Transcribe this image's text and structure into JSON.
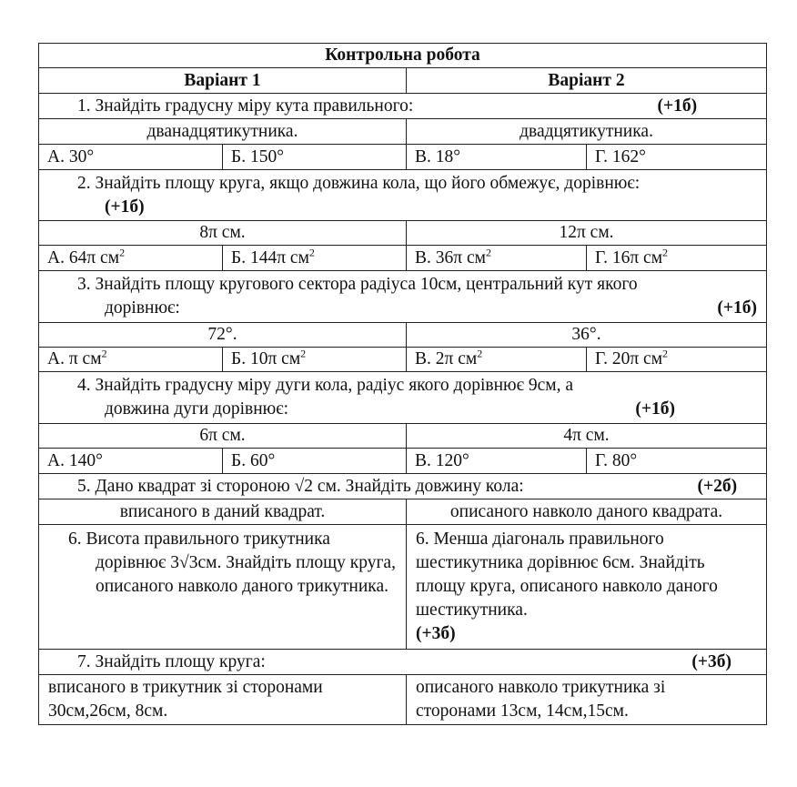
{
  "title": "Контрольна робота",
  "variants": [
    "Варіант 1",
    "Варіант 2"
  ],
  "q1": {
    "text": "1.  Знайдіть градусну міру кута правильного:",
    "points": "(+1б)",
    "v1": "дванадцятикутника.",
    "v2": "двадцятикутника.",
    "answers": [
      "А. 30°",
      "Б. 150°",
      "В. 18°",
      "Г. 162°"
    ]
  },
  "q2": {
    "text": "2.  Знайдіть площу круга, якщо довжина кола, що його обмежує, дорівнює:",
    "points": "(+1б)",
    "v1": "8π см.",
    "v2": "12π см.",
    "answers": [
      "А. 64π см",
      "Б. 144π см",
      "В. 36π см",
      "Г. 16π см"
    ],
    "sup": "2"
  },
  "q3": {
    "text": "3.  Знайдіть площу кругового сектора радіуса 10см, центральний кут якого",
    "text2": "дорівнює:",
    "points": "(+1б)",
    "v1": "72°.",
    "v2": "36°.",
    "answers": [
      "А. π см",
      "Б. 10π см",
      "В. 2π см",
      "Г. 20π см"
    ],
    "sup": "2"
  },
  "q4": {
    "text": "4.  Знайдіть градусну міру дуги кола, радіус якого дорівнює 9см, а",
    "text2": "довжина дуги дорівнює:",
    "points": "(+1б)",
    "v1": "6π см.",
    "v2": "4π см.",
    "answers": [
      "А. 140°",
      "Б. 60°",
      "В. 120°",
      "Г. 80°"
    ]
  },
  "q5": {
    "text": "5.  Дано квадрат зі стороною √2 см. Знайдіть довжину кола:",
    "points": "(+2б)",
    "v1": "вписаного в даний квадрат.",
    "v2": "описаного навколо даного квадрата."
  },
  "q6": {
    "v1": "6.  Висота правильного трикутника дорівнює 3√3см. Знайдіть площу круга, описаного навколо даного трикутника.",
    "v2": "6. Менша діагональ правильного шестикутника дорівнює 6см. Знайдіть площу круга, описаного навколо даного шестикутника.",
    "points": "(+3б)"
  },
  "q7": {
    "text": "7.  Знайдіть площу круга:",
    "points": "(+3б)",
    "v1": "вписаного в трикутник зі сторонами 30см,26см, 8см.",
    "v2": "описаного навколо трикутника зі сторонами 13см, 14см,15см."
  }
}
